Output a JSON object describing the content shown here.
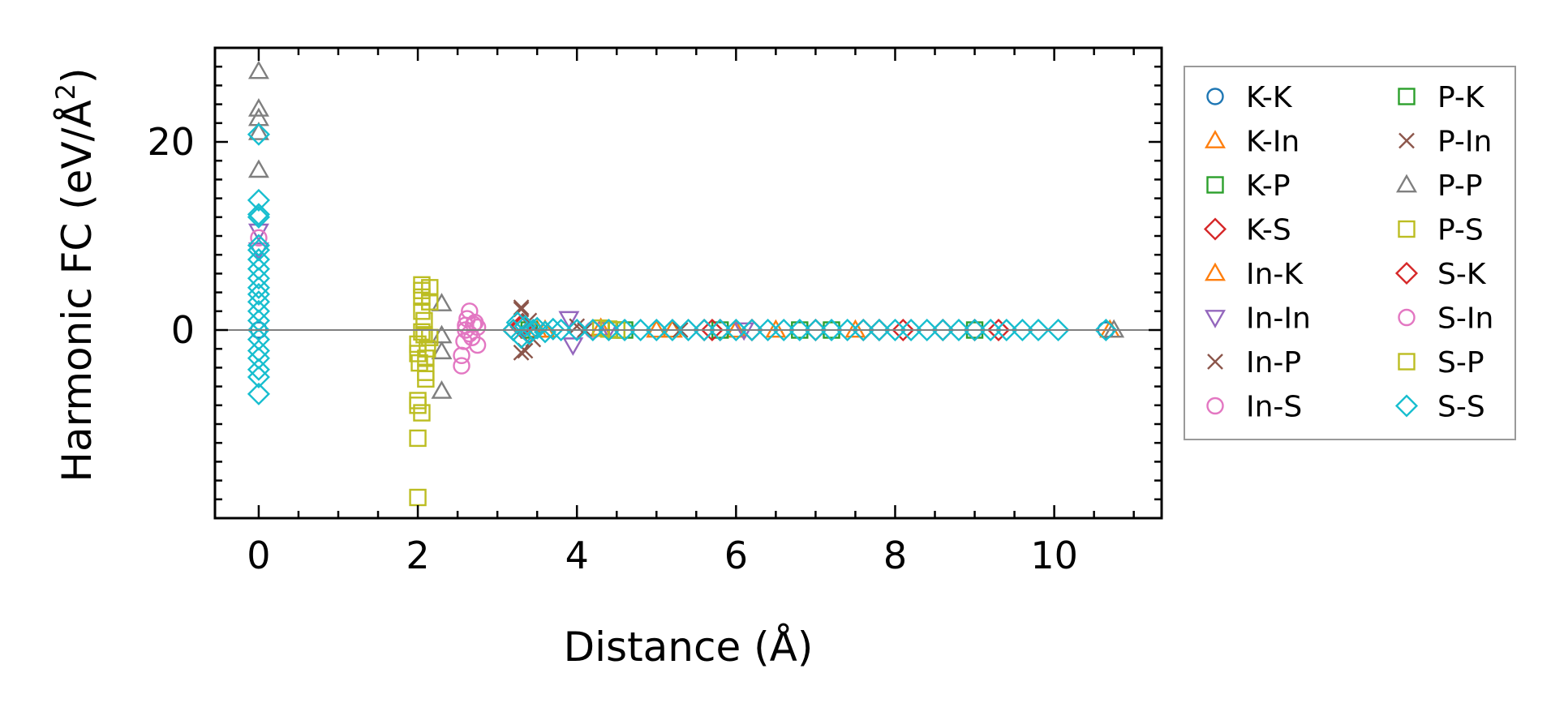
{
  "chart_data": {
    "type": "scatter",
    "xlabel": "Distance (Å)",
    "ylabel_main": "Harmonic FC (eV/Å",
    "ylabel_sup": "2",
    "ylabel_close": ")",
    "xlim": [
      -0.55,
      11.35
    ],
    "ylim": [
      -20,
      30
    ],
    "xticks": [
      0,
      2,
      4,
      6,
      8,
      10
    ],
    "xtick_labels": [
      "0",
      "2",
      "4",
      "6",
      "8",
      "10"
    ],
    "yticks": [
      0,
      20
    ],
    "ytick_labels": [
      "0",
      "20"
    ],
    "grid": false,
    "zero_line": true,
    "legend_position": "outside-right",
    "legend_columns": 2,
    "series": [
      {
        "name": "K-K",
        "marker": "circle",
        "color": "#1f77b4",
        "points": [
          [
            0,
            0
          ],
          [
            10.65,
            0
          ]
        ]
      },
      {
        "name": "K-In",
        "marker": "triangle-up",
        "color": "#ff7f0e",
        "points": [
          [
            3.5,
            0
          ],
          [
            4.3,
            0.2
          ],
          [
            5.2,
            0
          ],
          [
            6.0,
            0
          ],
          [
            7.5,
            0
          ],
          [
            10.7,
            0
          ]
        ]
      },
      {
        "name": "K-P",
        "marker": "square",
        "color": "#2ca02c",
        "points": [
          [
            3.4,
            0
          ],
          [
            4.5,
            0
          ],
          [
            5.8,
            0
          ],
          [
            7.2,
            0
          ],
          [
            9.0,
            0
          ]
        ]
      },
      {
        "name": "K-S",
        "marker": "diamond",
        "color": "#d62728",
        "points": [
          [
            3.2,
            0
          ],
          [
            3.3,
            0.5
          ],
          [
            3.4,
            -0.3
          ],
          [
            5.6,
            0
          ],
          [
            5.8,
            0
          ],
          [
            6.2,
            0
          ],
          [
            7.0,
            0
          ],
          [
            7.6,
            0
          ],
          [
            8.1,
            0
          ],
          [
            8.6,
            0
          ],
          [
            9.3,
            0
          ]
        ]
      },
      {
        "name": "In-K",
        "marker": "triangle-up",
        "color": "#ff7f0e",
        "points": [
          [
            3.6,
            0
          ],
          [
            5.0,
            0
          ],
          [
            6.5,
            0
          ]
        ]
      },
      {
        "name": "In-In",
        "marker": "triangle-down",
        "color": "#9467bd",
        "points": [
          [
            0,
            10.5
          ],
          [
            0,
            8.5
          ],
          [
            3.9,
            1.2
          ],
          [
            3.95,
            -1.6
          ],
          [
            4.4,
            0.1
          ],
          [
            6.1,
            0
          ]
        ]
      },
      {
        "name": "In-P",
        "marker": "x",
        "color": "#8c564b",
        "points": [
          [
            3.3,
            2.2
          ],
          [
            3.35,
            -2.2
          ],
          [
            3.4,
            1.0
          ],
          [
            3.45,
            -1.0
          ],
          [
            4.1,
            0
          ],
          [
            5.3,
            0
          ]
        ]
      },
      {
        "name": "In-S",
        "marker": "circle",
        "color": "#e377c2",
        "points": [
          [
            0,
            9.8
          ],
          [
            2.55,
            -3.8
          ],
          [
            2.55,
            -2.7
          ],
          [
            2.58,
            -1.2
          ],
          [
            2.6,
            0
          ],
          [
            2.62,
            1.2
          ],
          [
            2.65,
            2.0
          ],
          [
            2.68,
            -0.8
          ],
          [
            2.7,
            0.6
          ],
          [
            2.75,
            0.3
          ],
          [
            2.75,
            -1.6
          ],
          [
            4.2,
            0
          ]
        ]
      },
      {
        "name": "P-K",
        "marker": "square",
        "color": "#2ca02c",
        "points": [
          [
            4.6,
            0
          ],
          [
            6.8,
            0
          ]
        ]
      },
      {
        "name": "P-In",
        "marker": "x",
        "color": "#8c564b",
        "points": [
          [
            3.3,
            -2.4
          ],
          [
            3.3,
            2.4
          ],
          [
            4.0,
            0.4
          ]
        ]
      },
      {
        "name": "P-P",
        "marker": "triangle-up",
        "color": "#7f7f7f",
        "points": [
          [
            0,
            27.5
          ],
          [
            0,
            23.5
          ],
          [
            0,
            22.5
          ],
          [
            0,
            21.0
          ],
          [
            0,
            17.0
          ],
          [
            2.3,
            2.8
          ],
          [
            2.3,
            -0.6
          ],
          [
            2.3,
            -2.3
          ],
          [
            2.3,
            -6.5
          ],
          [
            10.75,
            0
          ]
        ]
      },
      {
        "name": "P-S",
        "marker": "square",
        "color": "#bcbd22",
        "points": [
          [
            2.0,
            -17.8
          ],
          [
            2.0,
            -11.5
          ],
          [
            2.0,
            -8.0
          ],
          [
            2.0,
            -7.5
          ],
          [
            2.0,
            -1.5
          ],
          [
            2.0,
            -2.5
          ],
          [
            2.02,
            -3.5
          ],
          [
            2.05,
            4.8
          ],
          [
            2.05,
            4.2
          ],
          [
            2.05,
            3.5
          ],
          [
            2.05,
            2.0
          ],
          [
            2.08,
            1.0
          ],
          [
            2.08,
            -0.5
          ],
          [
            2.1,
            -4.5
          ],
          [
            2.1,
            -5.2
          ],
          [
            2.12,
            -2.0
          ],
          [
            2.15,
            4.5
          ],
          [
            2.15,
            3.0
          ],
          [
            2.15,
            -0.8
          ],
          [
            2.05,
            -8.8
          ],
          [
            4.3,
            0.2
          ],
          [
            4.5,
            0
          ]
        ]
      },
      {
        "name": "S-K",
        "marker": "diamond",
        "color": "#d62728",
        "points": [
          [
            3.3,
            0.3
          ],
          [
            5.7,
            0
          ],
          [
            7.8,
            0
          ],
          [
            9.0,
            0
          ]
        ]
      },
      {
        "name": "S-In",
        "marker": "circle",
        "color": "#e377c2",
        "points": [
          [
            2.6,
            0.5
          ],
          [
            2.65,
            -0.4
          ],
          [
            2.72,
            0.8
          ]
        ]
      },
      {
        "name": "S-P",
        "marker": "square",
        "color": "#bcbd22",
        "points": [
          [
            2.05,
            -0.2
          ],
          [
            2.1,
            -3.0
          ],
          [
            4.4,
            0.1
          ]
        ]
      },
      {
        "name": "S-S",
        "marker": "diamond",
        "color": "#17becf",
        "points": [
          [
            0,
            20.8
          ],
          [
            0,
            13.8
          ],
          [
            0,
            12.3
          ],
          [
            0,
            12.0
          ],
          [
            0,
            9.0
          ],
          [
            0,
            8.5
          ],
          [
            0,
            7.5
          ],
          [
            0,
            6.5
          ],
          [
            0,
            5.5
          ],
          [
            0,
            4.5
          ],
          [
            0,
            3.8
          ],
          [
            0,
            3.0
          ],
          [
            0,
            2.0
          ],
          [
            0,
            1.0
          ],
          [
            0,
            0
          ],
          [
            0,
            -1.0
          ],
          [
            0,
            -2.2
          ],
          [
            0,
            -3.0
          ],
          [
            0,
            -4.2
          ],
          [
            0,
            -5.0
          ],
          [
            0,
            -6.8
          ],
          [
            3.2,
            0
          ],
          [
            3.25,
            0.8
          ],
          [
            3.3,
            -0.8
          ],
          [
            3.35,
            0.4
          ],
          [
            3.4,
            -0.4
          ],
          [
            3.45,
            0
          ],
          [
            3.5,
            0.2
          ],
          [
            3.6,
            -0.2
          ],
          [
            3.7,
            0.1
          ],
          [
            3.8,
            0
          ],
          [
            4.0,
            0
          ],
          [
            4.2,
            0
          ],
          [
            4.4,
            0
          ],
          [
            4.6,
            0
          ],
          [
            4.8,
            0
          ],
          [
            5.0,
            0
          ],
          [
            5.2,
            0
          ],
          [
            5.4,
            0
          ],
          [
            5.6,
            0
          ],
          [
            5.8,
            0
          ],
          [
            6.0,
            0
          ],
          [
            6.2,
            0
          ],
          [
            6.4,
            0
          ],
          [
            6.6,
            0
          ],
          [
            6.8,
            0
          ],
          [
            7.0,
            0
          ],
          [
            7.2,
            0
          ],
          [
            7.4,
            0
          ],
          [
            7.6,
            0
          ],
          [
            7.8,
            0
          ],
          [
            8.0,
            0
          ],
          [
            8.2,
            0
          ],
          [
            8.4,
            0
          ],
          [
            8.6,
            0
          ],
          [
            8.8,
            0
          ],
          [
            9.0,
            0
          ],
          [
            9.2,
            0
          ],
          [
            9.4,
            0
          ],
          [
            9.6,
            0
          ],
          [
            9.8,
            0
          ],
          [
            10.05,
            0
          ],
          [
            10.65,
            0
          ]
        ]
      }
    ]
  }
}
